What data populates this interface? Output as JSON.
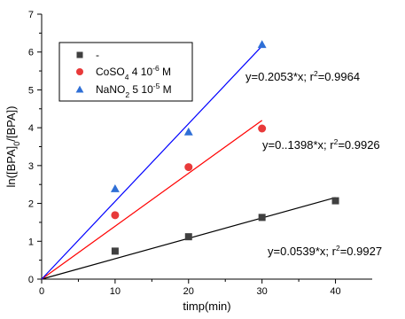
{
  "chart_data": {
    "type": "scatter",
    "xlabel": "timp(min)",
    "ylabel_parts": [
      "ln([BPA]",
      "0",
      "/[BPA])"
    ],
    "xlim": [
      0,
      45
    ],
    "ylim": [
      0,
      7
    ],
    "xticks": [
      0,
      10,
      20,
      30,
      40
    ],
    "yticks": [
      0,
      1,
      2,
      3,
      4,
      5,
      6,
      7
    ],
    "grid": false,
    "legend_position": "top-left",
    "series": [
      {
        "legend_parts": [
          "-"
        ],
        "marker": "square",
        "color": "#404040",
        "line_color": "#000000",
        "x": [
          10,
          20,
          30,
          40
        ],
        "y": [
          0.74,
          1.12,
          1.63,
          2.07
        ],
        "fit": {
          "slope": 0.0539,
          "x_end": 40
        },
        "annotation_parts": [
          "y=0.0539*x; r",
          "2",
          "=0.9927"
        ]
      },
      {
        "legend_parts": [
          "CoSO",
          "4",
          " 4 10",
          "-6",
          " M"
        ],
        "marker": "circle",
        "color": "#e83a3a",
        "line_color": "#ff0000",
        "x": [
          10,
          20,
          30
        ],
        "y": [
          1.69,
          2.96,
          3.98
        ],
        "fit": {
          "slope": 0.1398,
          "x_end": 30
        },
        "annotation_parts": [
          "y=0..1398*x; r",
          "2",
          "=0.9926"
        ]
      },
      {
        "legend_parts": [
          "NaNO",
          "2",
          " 5 10",
          "-5",
          " M"
        ],
        "marker": "triangle",
        "color": "#2f6fd6",
        "line_color": "#0000ff",
        "x": [
          10,
          20,
          30
        ],
        "y": [
          2.39,
          3.89,
          6.2
        ],
        "fit": {
          "slope": 0.2053,
          "x_end": 30
        },
        "annotation_parts": [
          "y=0.2053*x; r",
          "2",
          "=0.9964"
        ]
      }
    ]
  }
}
